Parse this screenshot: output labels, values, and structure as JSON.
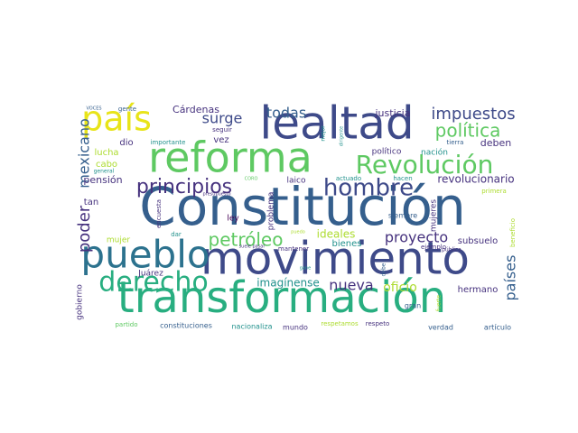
{
  "palette": {
    "c1": "#46327e",
    "c2": "#3e4a89",
    "c3": "#355f8d",
    "c4": "#2c728e",
    "c5": "#21918c",
    "c6": "#28ae80",
    "c7": "#5ec962",
    "c8": "#addc30",
    "c9": "#e8e419",
    "c10": "#440154"
  },
  "words": [
    {
      "text": "Constitución",
      "weight": 100,
      "color": "c3"
    },
    {
      "text": "transformación",
      "weight": 82,
      "color": "c6"
    },
    {
      "text": "movimiento",
      "weight": 80,
      "color": "c2"
    },
    {
      "text": "reforma",
      "weight": 78,
      "color": "c7"
    },
    {
      "text": "lealtad",
      "weight": 76,
      "color": "c2"
    },
    {
      "text": "pueblo",
      "weight": 70,
      "color": "c4"
    },
    {
      "text": "país",
      "weight": 66,
      "color": "c9"
    },
    {
      "text": "derecho",
      "weight": 58,
      "color": "c6"
    },
    {
      "text": "Revolución",
      "weight": 52,
      "color": "c7"
    },
    {
      "text": "hombre",
      "weight": 50,
      "color": "c2"
    },
    {
      "text": "principios",
      "weight": 44,
      "color": "c1"
    },
    {
      "text": "impuestos",
      "weight": 40,
      "color": "c2"
    },
    {
      "text": "política",
      "weight": 38,
      "color": "c7"
    },
    {
      "text": "petróleo",
      "weight": 36,
      "color": "c7"
    },
    {
      "text": "poder",
      "weight": 36,
      "color": "c1"
    },
    {
      "text": "mexicano",
      "weight": 34,
      "color": "c3"
    },
    {
      "text": "surge",
      "weight": 34,
      "color": "c2"
    },
    {
      "text": "todas",
      "weight": 32,
      "color": "c3"
    },
    {
      "text": "nueva",
      "weight": 32,
      "color": "c1"
    },
    {
      "text": "proyecto",
      "weight": 32,
      "color": "c1"
    },
    {
      "text": "países",
      "weight": 30,
      "color": "c3"
    },
    {
      "text": "oficio",
      "weight": 26,
      "color": "c8"
    },
    {
      "text": "revolucionario",
      "weight": 26,
      "color": "c1"
    },
    {
      "text": "imagínense",
      "weight": 24,
      "color": "c5"
    },
    {
      "text": "ideales",
      "weight": 24,
      "color": "c8"
    },
    {
      "text": "justicia",
      "weight": 22,
      "color": "c1"
    },
    {
      "text": "pensión",
      "weight": 22,
      "color": "c1"
    },
    {
      "text": "Cárdenas",
      "weight": 22,
      "color": "c1"
    },
    {
      "text": "deben",
      "weight": 22,
      "color": "c1"
    },
    {
      "text": "subsuelo",
      "weight": 20,
      "color": "c1"
    },
    {
      "text": "hermano",
      "weight": 20,
      "color": "c1"
    },
    {
      "text": "lucha",
      "weight": 20,
      "color": "c8"
    },
    {
      "text": "cabo",
      "weight": 20,
      "color": "c8"
    },
    {
      "text": "dio",
      "weight": 20,
      "color": "c1"
    },
    {
      "text": "vez",
      "weight": 20,
      "color": "c1"
    },
    {
      "text": "tan",
      "weight": 20,
      "color": "c1"
    },
    {
      "text": "bienes",
      "weight": 20,
      "color": "c5"
    },
    {
      "text": "mujeres",
      "weight": 18,
      "color": "c1"
    },
    {
      "text": "problema",
      "weight": 18,
      "color": "c1"
    },
    {
      "text": "Juárez",
      "weight": 18,
      "color": "c1"
    },
    {
      "text": "gobierno",
      "weight": 18,
      "color": "c1"
    },
    {
      "text": "mujer",
      "weight": 16,
      "color": "c8"
    },
    {
      "text": "laico",
      "weight": 16,
      "color": "c1"
    },
    {
      "text": "ley",
      "weight": 16,
      "color": "c10"
    },
    {
      "text": "político",
      "weight": 16,
      "color": "c1"
    },
    {
      "text": "nación",
      "weight": 16,
      "color": "c5"
    },
    {
      "text": "siempre",
      "weight": 16,
      "color": "c3"
    },
    {
      "text": "mundo",
      "weight": 16,
      "color": "c1"
    },
    {
      "text": "verdad",
      "weight": 16,
      "color": "c3"
    },
    {
      "text": "gran",
      "weight": 14,
      "color": "c3"
    },
    {
      "text": "artículo",
      "weight": 14,
      "color": "c3"
    },
    {
      "text": "constituciones",
      "weight": 14,
      "color": "c3"
    },
    {
      "text": "nacionaliza",
      "weight": 14,
      "color": "c5"
    },
    {
      "text": "respetamos",
      "weight": 14,
      "color": "c8"
    },
    {
      "text": "respeto",
      "weight": 14,
      "color": "c1"
    },
    {
      "text": "partido",
      "weight": 14,
      "color": "c7"
    },
    {
      "text": "gente",
      "weight": 14,
      "color": "c3"
    },
    {
      "text": "seguir",
      "weight": 14,
      "color": "c1"
    },
    {
      "text": "importante",
      "weight": 14,
      "color": "c5"
    },
    {
      "text": "encuesta",
      "weight": 14,
      "color": "c1"
    },
    {
      "text": "dar",
      "weight": 14,
      "color": "c5"
    },
    {
      "text": "mantener",
      "weight": 14,
      "color": "c1"
    },
    {
      "text": "ejemplo",
      "weight": 14,
      "color": "c1"
    },
    {
      "text": "primera",
      "weight": 14,
      "color": "c8"
    },
    {
      "text": "beneficio",
      "weight": 12,
      "color": "c8"
    },
    {
      "text": "hacen",
      "weight": 14,
      "color": "c5"
    },
    {
      "text": "actuado",
      "weight": 14,
      "color": "c5"
    },
    {
      "text": "tierra",
      "weight": 14,
      "color": "c3"
    },
    {
      "text": "mejor",
      "weight": 12,
      "color": "c5"
    },
    {
      "text": "pública",
      "weight": 12,
      "color": "c1"
    },
    {
      "text": "debe",
      "weight": 12,
      "color": "c3"
    },
    {
      "text": "fuerte",
      "weight": 10,
      "color": "c8"
    },
    {
      "text": "general",
      "weight": 10,
      "color": "c5"
    },
    {
      "text": "VOCES",
      "weight": 8,
      "color": "c3"
    },
    {
      "text": "CORO",
      "weight": 8,
      "color": "c7"
    },
    {
      "text": "presupuesto",
      "weight": 8,
      "color": "c1"
    },
    {
      "text": "dirigente",
      "weight": 8,
      "color": "c5"
    },
    {
      "text": "suele pasar",
      "weight": 8,
      "color": "c1"
    },
    {
      "text": "gane",
      "weight": 8,
      "color": "c5"
    },
    {
      "text": "puedo",
      "weight": 8,
      "color": "c8"
    }
  ]
}
